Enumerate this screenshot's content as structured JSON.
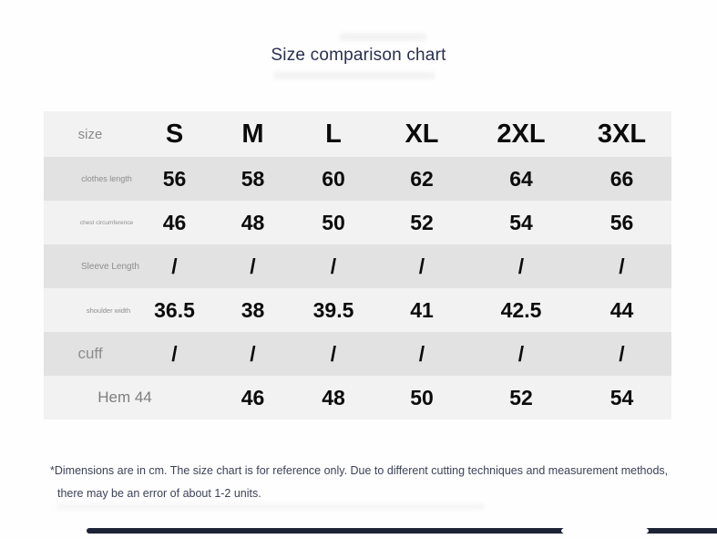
{
  "title": "Size comparison chart",
  "chart_data": {
    "type": "table",
    "title": "Size comparison chart",
    "header": {
      "label": "size",
      "sizes": [
        "S",
        "M",
        "L",
        "XL",
        "2XL",
        "3XL"
      ]
    },
    "rows": [
      {
        "label": "clothes length",
        "values": [
          "56",
          "58",
          "60",
          "62",
          "64",
          "66"
        ]
      },
      {
        "label": "chest circumference",
        "values": [
          "46",
          "48",
          "50",
          "52",
          "54",
          "56"
        ]
      },
      {
        "label": "Sleeve Length",
        "values": [
          "/",
          "/",
          "/",
          "/",
          "/",
          "/"
        ]
      },
      {
        "label": "shoulder width",
        "values": [
          "36.5",
          "38",
          "39.5",
          "41",
          "42.5",
          "44"
        ]
      },
      {
        "label": "cuff",
        "values": [
          "/",
          "/",
          "/",
          "/",
          "/",
          "/"
        ]
      },
      {
        "label": "Hem 44",
        "values": [
          "",
          "46",
          "48",
          "50",
          "52",
          "54"
        ]
      }
    ]
  },
  "footnote": {
    "line1": "*Dimensions are in cm. The size chart is for reference only. Due to different cutting techniques and measurement methods,",
    "line2": "there may be an error of about 1-2 units."
  },
  "colors": {
    "title_text": "#2a3050",
    "table_values": "#0b0b0b",
    "row_bg_light": "#f2f2f3",
    "row_bg_dark": "#e2e2e3",
    "label_text": "#8d8d8d",
    "footnote_text": "#3d4357",
    "bottom_bar": "#1e2236"
  }
}
